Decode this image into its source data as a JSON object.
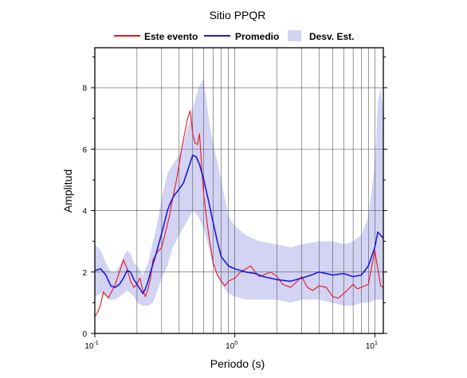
{
  "chart_data": {
    "type": "line",
    "title": "Sitio PPQR",
    "xlabel": "Periodo (s)",
    "ylabel": "Amplitud",
    "xscale": "log",
    "xlim": [
      0.1,
      11.5
    ],
    "ylim": [
      0,
      9.3
    ],
    "grid": true,
    "legend_position": "top",
    "x_tick_labels": [
      {
        "value": 0.1,
        "base": "10",
        "exp": "-1"
      },
      {
        "value": 1,
        "base": "10",
        "exp": "0"
      },
      {
        "value": 10,
        "base": "10",
        "exp": "1"
      }
    ],
    "y_ticks": [
      0,
      2,
      4,
      6,
      8
    ],
    "legend": [
      "Este evento",
      "Promedio",
      "Desv. Est."
    ],
    "colors": {
      "event": "#e8181f",
      "mean": "#1a1adb",
      "band": "#d3d3f4"
    },
    "series": [
      {
        "name": "Este evento",
        "x": [
          0.1,
          0.105,
          0.11,
          0.115,
          0.12,
          0.125,
          0.13,
          0.14,
          0.15,
          0.16,
          0.17,
          0.18,
          0.19,
          0.2,
          0.21,
          0.22,
          0.23,
          0.24,
          0.25,
          0.26,
          0.28,
          0.3,
          0.32,
          0.34,
          0.36,
          0.38,
          0.4,
          0.42,
          0.44,
          0.46,
          0.48,
          0.5,
          0.52,
          0.54,
          0.56,
          0.58,
          0.6,
          0.63,
          0.66,
          0.7,
          0.75,
          0.8,
          0.85,
          0.9,
          1.0,
          1.1,
          1.2,
          1.3,
          1.4,
          1.5,
          1.6,
          1.8,
          2.0,
          2.2,
          2.5,
          2.8,
          3.0,
          3.3,
          3.6,
          4.0,
          4.5,
          5.0,
          5.5,
          6.0,
          6.5,
          7.0,
          7.5,
          8.0,
          9.0,
          10.0,
          11.0,
          11.5
        ],
        "values": [
          0.55,
          0.7,
          0.95,
          1.35,
          1.25,
          1.15,
          1.3,
          1.6,
          2.0,
          2.4,
          2.1,
          1.7,
          1.5,
          1.6,
          1.8,
          1.4,
          1.2,
          1.45,
          1.8,
          2.4,
          2.65,
          2.8,
          3.3,
          3.8,
          4.4,
          4.9,
          5.5,
          6.1,
          6.55,
          7.0,
          7.25,
          6.5,
          6.2,
          6.15,
          6.5,
          5.4,
          4.5,
          3.7,
          3.0,
          2.3,
          1.9,
          1.7,
          1.55,
          1.7,
          1.8,
          2.0,
          2.1,
          2.2,
          2.0,
          1.85,
          1.9,
          2.0,
          1.85,
          1.6,
          1.5,
          1.7,
          1.85,
          1.5,
          1.4,
          1.55,
          1.5,
          1.2,
          1.15,
          1.3,
          1.45,
          1.6,
          1.45,
          1.5,
          1.6,
          2.7,
          1.55,
          1.5
        ]
      },
      {
        "name": "Promedio",
        "x": [
          0.1,
          0.11,
          0.12,
          0.13,
          0.14,
          0.15,
          0.16,
          0.17,
          0.18,
          0.19,
          0.2,
          0.21,
          0.22,
          0.23,
          0.24,
          0.25,
          0.27,
          0.29,
          0.31,
          0.33,
          0.35,
          0.37,
          0.4,
          0.43,
          0.46,
          0.5,
          0.53,
          0.56,
          0.6,
          0.65,
          0.7,
          0.75,
          0.8,
          0.9,
          1.0,
          1.1,
          1.2,
          1.4,
          1.6,
          1.8,
          2.0,
          2.5,
          3.0,
          3.5,
          4.0,
          4.5,
          5.0,
          6.0,
          7.0,
          8.0,
          9.0,
          10.0,
          10.5,
          11.0,
          11.5
        ],
        "values": [
          2.05,
          2.1,
          1.9,
          1.55,
          1.5,
          1.6,
          1.8,
          2.05,
          2.0,
          1.75,
          1.6,
          1.45,
          1.3,
          1.45,
          1.7,
          2.0,
          2.5,
          3.0,
          3.5,
          4.0,
          4.3,
          4.5,
          4.7,
          4.9,
          5.3,
          5.8,
          5.75,
          5.5,
          5.0,
          4.3,
          3.6,
          3.0,
          2.5,
          2.2,
          2.1,
          2.05,
          2.0,
          1.95,
          1.85,
          1.8,
          1.75,
          1.7,
          1.8,
          1.9,
          2.0,
          1.95,
          1.9,
          1.95,
          1.85,
          1.9,
          2.2,
          2.8,
          3.3,
          3.2,
          3.1
        ]
      },
      {
        "name": "Desv. Est.",
        "x": [
          0.1,
          0.11,
          0.12,
          0.13,
          0.14,
          0.15,
          0.16,
          0.17,
          0.18,
          0.19,
          0.2,
          0.22,
          0.24,
          0.26,
          0.28,
          0.3,
          0.33,
          0.36,
          0.4,
          0.45,
          0.5,
          0.55,
          0.6,
          0.65,
          0.7,
          0.8,
          0.9,
          1.0,
          1.2,
          1.5,
          2.0,
          2.5,
          3.0,
          4.0,
          5.0,
          6.0,
          7.0,
          8.0,
          9.0,
          10.0,
          10.5,
          11.0,
          11.5
        ],
        "upper": [
          2.9,
          2.7,
          2.3,
          2.0,
          2.0,
          2.2,
          2.5,
          2.7,
          2.6,
          2.3,
          2.2,
          1.9,
          2.3,
          3.0,
          3.6,
          4.4,
          5.2,
          5.5,
          5.8,
          6.5,
          7.3,
          8.0,
          8.3,
          7.0,
          6.2,
          5.0,
          3.8,
          3.5,
          3.2,
          3.0,
          2.9,
          2.8,
          2.9,
          3.0,
          3.0,
          2.9,
          3.0,
          3.2,
          3.8,
          5.5,
          7.5,
          8.0,
          7.2
        ],
        "lower": [
          1.2,
          1.3,
          1.2,
          1.1,
          1.1,
          1.2,
          1.3,
          1.4,
          1.3,
          1.2,
          1.0,
          0.9,
          0.9,
          1.0,
          1.4,
          1.8,
          2.2,
          2.8,
          3.2,
          3.6,
          4.0,
          3.8,
          3.4,
          2.8,
          2.2,
          1.6,
          1.3,
          1.2,
          1.1,
          1.1,
          1.1,
          1.0,
          1.1,
          1.1,
          1.0,
          0.9,
          0.9,
          1.0,
          1.0,
          1.1,
          1.1,
          1.1,
          1.1
        ]
      }
    ]
  }
}
